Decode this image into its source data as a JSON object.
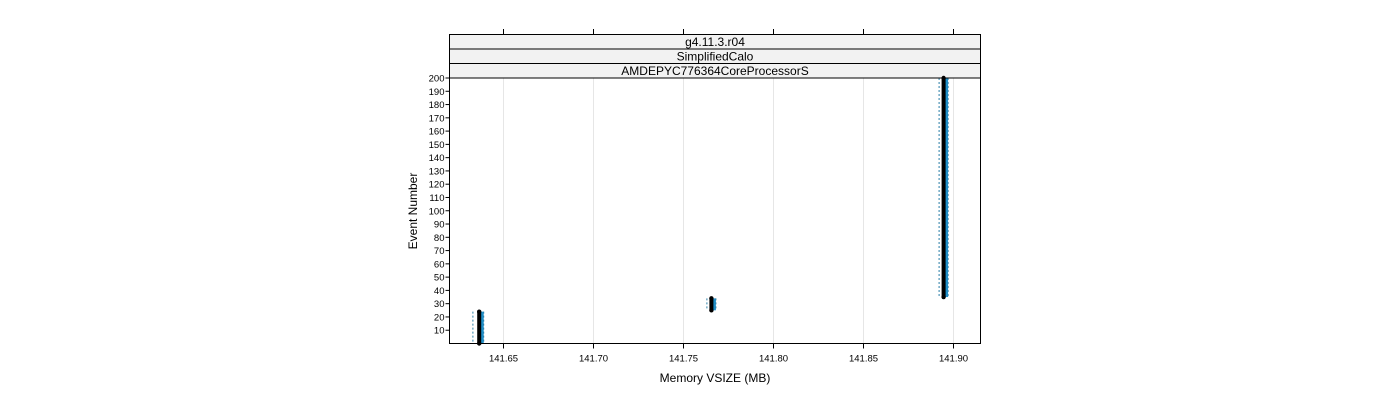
{
  "chart_data": {
    "type": "scatter",
    "strips": [
      "g4.11.3.r04",
      "SimplifiedCalo",
      "AMDEPYC776364CoreProcessorS"
    ],
    "xlabel": "Memory VSIZE (MB)",
    "ylabel": "Event Number",
    "xlim": [
      141.62,
      141.915
    ],
    "ylim": [
      0,
      200
    ],
    "xticks": [
      141.65,
      141.7,
      141.75,
      141.8,
      141.85,
      141.9
    ],
    "xtick_labels": [
      "141.65",
      "141.70",
      "141.75",
      "141.80",
      "141.85",
      "141.90"
    ],
    "yticks": [
      10,
      20,
      30,
      40,
      50,
      60,
      70,
      80,
      90,
      100,
      110,
      120,
      130,
      140,
      150,
      160,
      170,
      180,
      190,
      200
    ],
    "grid": true,
    "clusters": [
      {
        "x": 141.6365,
        "x_min": 141.633,
        "x_max": 141.639,
        "y_min": 0,
        "y_max": 24
      },
      {
        "x": 141.7655,
        "x_min": 141.763,
        "x_max": 141.768,
        "y_min": 25,
        "y_max": 34
      },
      {
        "x": 141.8945,
        "x_min": 141.892,
        "x_max": 141.897,
        "y_min": 35,
        "y_max": 200
      }
    ],
    "colors": {
      "points": "#000000",
      "band": "#1f8fc9",
      "band_dash": "#2b7fa8",
      "grid": "#e6e6e6",
      "strip_bg": "#f2f2f2"
    }
  }
}
